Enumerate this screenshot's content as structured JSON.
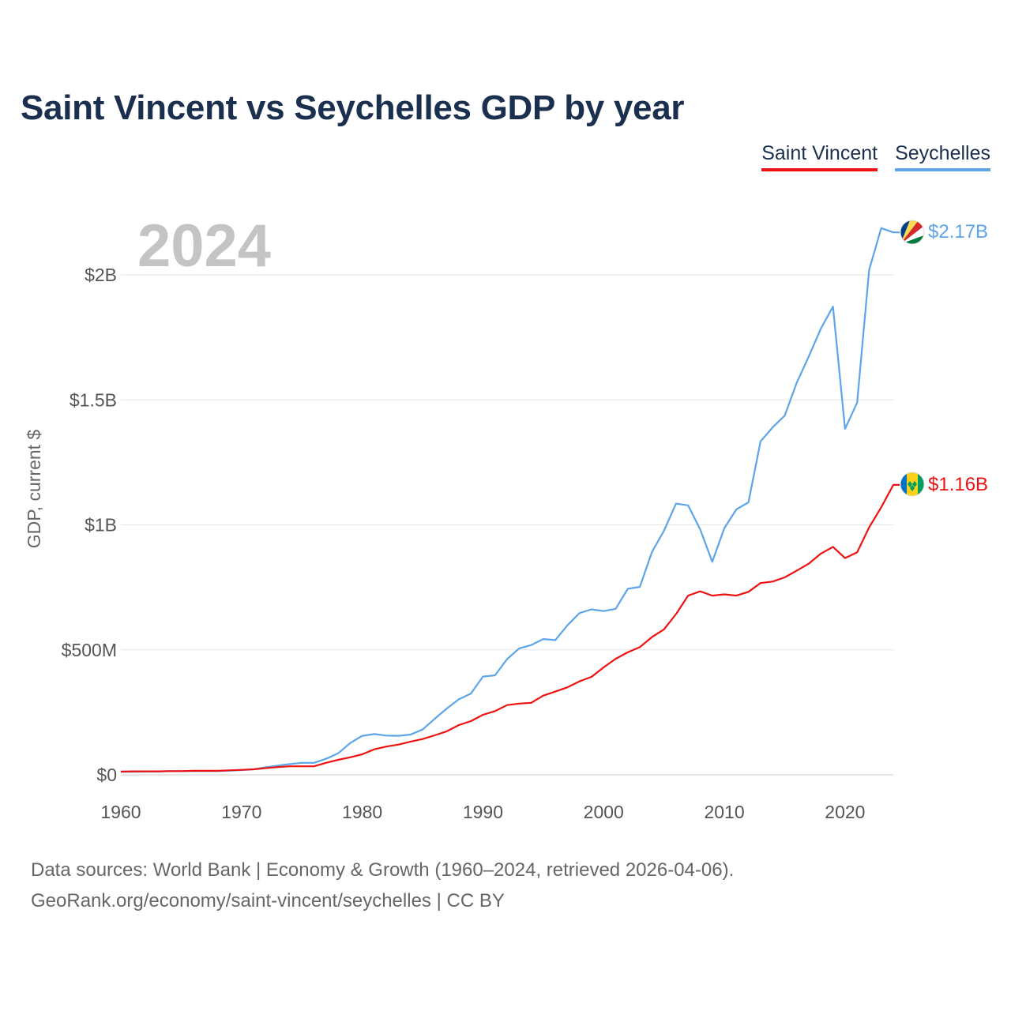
{
  "header": {
    "title": "Saint Vincent vs Seychelles GDP by year",
    "year_watermark": "2024"
  },
  "legend": [
    {
      "label": "Saint Vincent",
      "color": "#ee1111"
    },
    {
      "label": "Seychelles",
      "color": "#5da5e8"
    }
  ],
  "flags": {
    "saint_vincent": "saint-vincent-flag-icon",
    "seychelles": "seychelles-flag-icon"
  },
  "chart_data": {
    "type": "line",
    "title": "Saint Vincent vs Seychelles GDP by year",
    "xlabel": "",
    "ylabel": "GDP, current $",
    "xlim": [
      1960,
      2024
    ],
    "ylim": [
      0,
      2300000000
    ],
    "grid": true,
    "legend_position": "top-right",
    "x_ticks": [
      1960,
      1970,
      1980,
      1990,
      2000,
      2010,
      2020
    ],
    "x_tick_labels": [
      "1960",
      "1970",
      "1980",
      "1990",
      "2000",
      "2010",
      "2020"
    ],
    "y_ticks": [
      0,
      500000000,
      1000000000,
      1500000000,
      2000000000
    ],
    "y_tick_labels": [
      "$0",
      "$500M",
      "$1B",
      "$1.5B",
      "$2B"
    ],
    "x": [
      1960,
      1961,
      1962,
      1963,
      1964,
      1965,
      1966,
      1967,
      1968,
      1969,
      1970,
      1971,
      1972,
      1973,
      1974,
      1975,
      1976,
      1977,
      1978,
      1979,
      1980,
      1981,
      1982,
      1983,
      1984,
      1985,
      1986,
      1987,
      1988,
      1989,
      1990,
      1991,
      1992,
      1993,
      1994,
      1995,
      1996,
      1997,
      1998,
      1999,
      2000,
      2001,
      2002,
      2003,
      2004,
      2005,
      2006,
      2007,
      2008,
      2009,
      2010,
      2011,
      2012,
      2013,
      2014,
      2015,
      2016,
      2017,
      2018,
      2019,
      2020,
      2021,
      2022,
      2023,
      2024
    ],
    "series": [
      {
        "name": "Saint Vincent",
        "color": "#ee1111",
        "end_label": "$1.16B",
        "values": [
          13000000,
          14000000,
          14000000,
          14000000,
          15000000,
          15000000,
          16000000,
          16000000,
          16000000,
          18000000,
          20000000,
          22000000,
          27000000,
          31000000,
          34000000,
          34000000,
          34000000,
          48000000,
          60000000,
          70000000,
          82000000,
          102000000,
          113000000,
          121000000,
          133000000,
          143000000,
          158000000,
          174000000,
          199000000,
          215000000,
          240000000,
          255000000,
          279000000,
          285000000,
          288000000,
          317000000,
          333000000,
          350000000,
          374000000,
          392000000,
          430000000,
          464000000,
          490000000,
          511000000,
          551000000,
          582000000,
          643000000,
          717000000,
          734000000,
          717000000,
          722000000,
          717000000,
          732000000,
          767000000,
          773000000,
          790000000,
          817000000,
          845000000,
          885000000,
          912000000,
          867000000,
          890000000,
          990000000,
          1070000000,
          1160000000
        ]
      },
      {
        "name": "Seychelles",
        "color": "#5da5e8",
        "end_label": "$2.17B",
        "values": [
          12000000,
          12000000,
          13000000,
          13000000,
          15000000,
          15000000,
          15000000,
          15000000,
          15000000,
          17000000,
          19000000,
          22000000,
          30000000,
          37000000,
          43000000,
          48000000,
          48000000,
          64000000,
          86000000,
          127000000,
          156000000,
          163000000,
          157000000,
          156000000,
          161000000,
          181000000,
          224000000,
          265000000,
          302000000,
          325000000,
          393000000,
          398000000,
          463000000,
          506000000,
          519000000,
          543000000,
          539000000,
          598000000,
          647000000,
          662000000,
          655000000,
          664000000,
          744000000,
          752000000,
          891000000,
          977000000,
          1085000000,
          1078000000,
          982000000,
          852000000,
          987000000,
          1062000000,
          1090000000,
          1334000000,
          1390000000,
          1437000000,
          1569000000,
          1674000000,
          1785000000,
          1873000000,
          1384000000,
          1489000000,
          2020000000,
          2187000000,
          2170000000
        ]
      }
    ]
  },
  "footer": {
    "line1": "Data sources: World Bank | Economy & Growth (1960–2024, retrieved 2026-04-06).",
    "line2": "GeoRank.org/economy/saint-vincent/seychelles | CC BY"
  }
}
